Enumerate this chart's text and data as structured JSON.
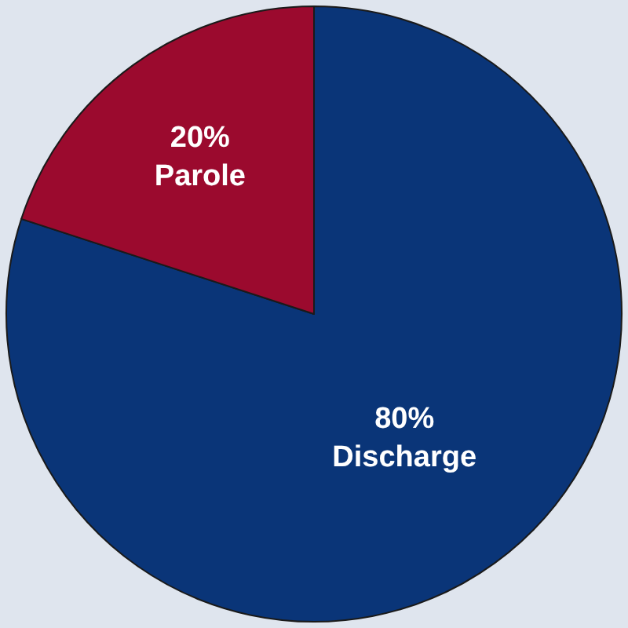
{
  "chart_data": {
    "type": "pie",
    "categories": [
      "Discharge",
      "Parole"
    ],
    "values": [
      80,
      20
    ],
    "colors": [
      "#0a3578",
      "#9b0a2e"
    ],
    "value_labels": [
      "80%",
      "20%"
    ],
    "legend": false
  }
}
